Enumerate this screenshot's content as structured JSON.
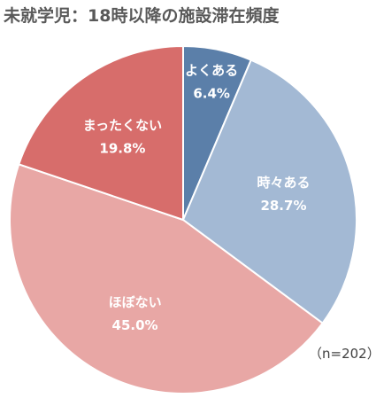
{
  "chart_data": {
    "type": "pie",
    "title": "未就学児：18時以降の施設滞在頻度",
    "note": "（n=202）",
    "slices": [
      {
        "label": "よくある",
        "value_label": "6.4%",
        "value": 6.4,
        "color": "#5b7fa9"
      },
      {
        "label": "時々ある",
        "value_label": "28.7%",
        "value": 28.7,
        "color": "#a3b9d4"
      },
      {
        "label": "ほぼない",
        "value_label": "45.0%",
        "value": 45.0,
        "color": "#e8a7a5"
      },
      {
        "label": "まったくない",
        "value_label": "19.8%",
        "value": 19.8,
        "color": "#d76d6b"
      }
    ]
  }
}
